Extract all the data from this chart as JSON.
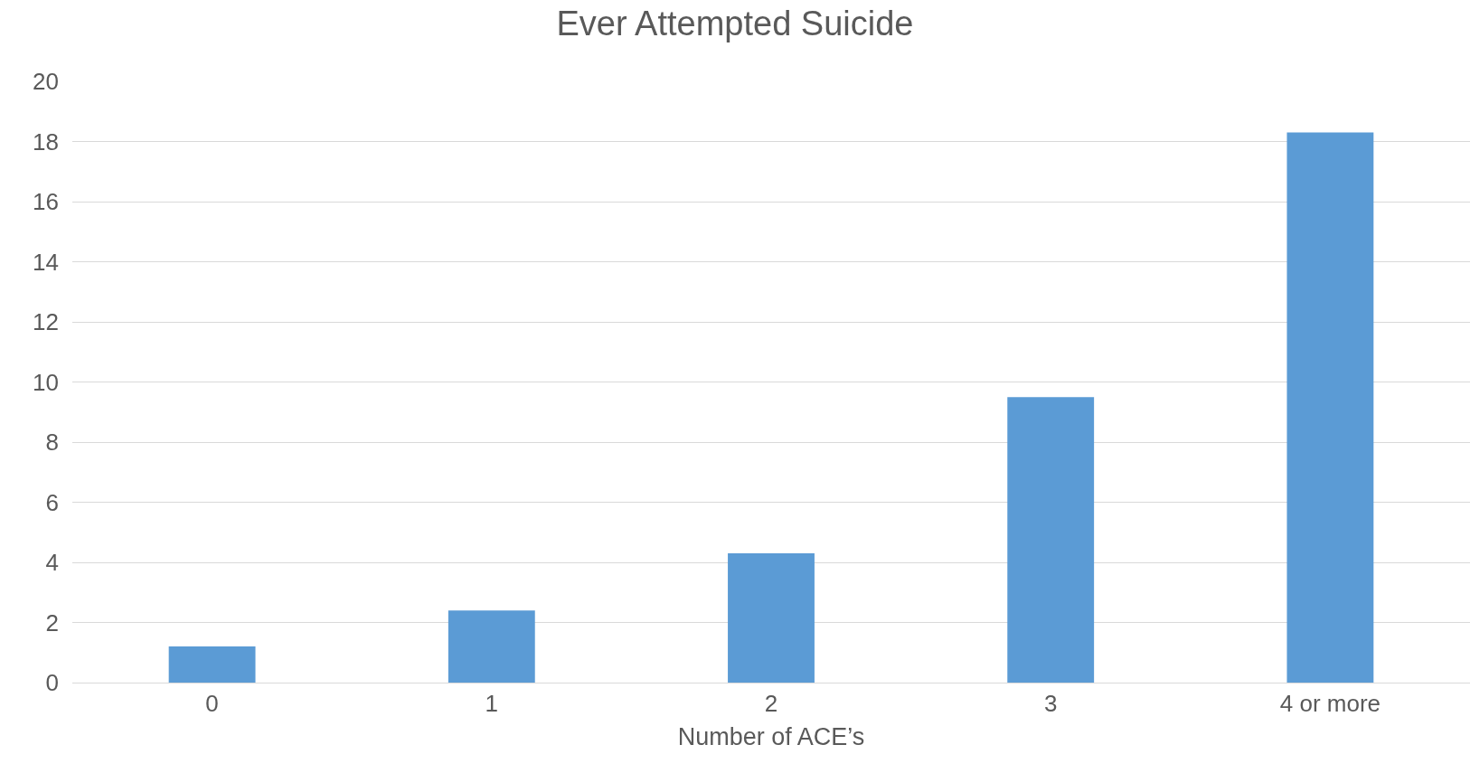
{
  "chart_data": {
    "type": "bar",
    "title": "Ever Attempted Suicide",
    "xlabel": "Number of ACE’s",
    "categories": [
      "0",
      "1",
      "2",
      "3",
      "4 or more"
    ],
    "values": [
      1.2,
      2.4,
      4.3,
      9.5,
      18.3
    ],
    "color": "#5b9bd5",
    "ylim": [
      0,
      20
    ],
    "yticks": [
      0,
      2,
      4,
      6,
      8,
      10,
      12,
      14,
      16,
      18,
      20
    ],
    "grid": "y",
    "legend": false
  }
}
